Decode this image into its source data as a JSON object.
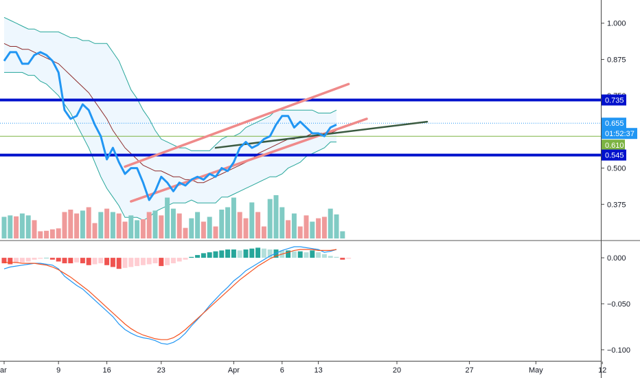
{
  "chart_data": [
    {
      "type": "line",
      "panel": "price",
      "title": "",
      "x_tick_labels": [
        "ar",
        "9",
        "16",
        "23",
        "Apr",
        "6",
        "13",
        "20",
        "27",
        "May",
        "12"
      ],
      "y_ticks": [
        1.0,
        0.875,
        0.75,
        0.5,
        0.375
      ],
      "y_tick_labels": [
        "1.000",
        "0.875",
        "0.750",
        "0.500",
        "0.375"
      ],
      "ylim": [
        0.25,
        1.08
      ],
      "grid": false,
      "price_series": {
        "name": "",
        "color": "#2196f3",
        "values": [
          0.87,
          0.9,
          0.9,
          0.86,
          0.86,
          0.89,
          0.9,
          0.89,
          0.87,
          0.83,
          0.7,
          0.67,
          0.68,
          0.72,
          0.7,
          0.65,
          0.61,
          0.53,
          0.57,
          0.52,
          0.48,
          0.5,
          0.5,
          0.45,
          0.39,
          0.42,
          0.47,
          0.45,
          0.42,
          0.45,
          0.44,
          0.46,
          0.47,
          0.46,
          0.48,
          0.47,
          0.5,
          0.49,
          0.52,
          0.57,
          0.59,
          0.57,
          0.58,
          0.6,
          0.61,
          0.65,
          0.68,
          0.68,
          0.64,
          0.66,
          0.64,
          0.62,
          0.62,
          0.61,
          0.64,
          0.65
        ]
      },
      "bollinger": {
        "color": "#26a69a",
        "fill": "#e3f2fd",
        "upper": [
          1.02,
          1.01,
          1.0,
          0.99,
          0.98,
          0.98,
          0.97,
          0.97,
          0.97,
          0.97,
          0.96,
          0.95,
          0.95,
          0.94,
          0.94,
          0.93,
          0.93,
          0.93,
          0.9,
          0.87,
          0.82,
          0.77,
          0.74,
          0.7,
          0.67,
          0.63,
          0.6,
          0.59,
          0.58,
          0.57,
          0.57,
          0.56,
          0.56,
          0.56,
          0.56,
          0.58,
          0.6,
          0.61,
          0.61,
          0.62,
          0.64,
          0.65,
          0.66,
          0.67,
          0.68,
          0.7,
          0.7,
          0.7,
          0.7,
          0.7,
          0.7,
          0.7,
          0.69,
          0.69,
          0.69,
          0.7
        ],
        "middle": [
          0.93,
          0.92,
          0.92,
          0.91,
          0.91,
          0.9,
          0.89,
          0.88,
          0.87,
          0.86,
          0.84,
          0.82,
          0.8,
          0.78,
          0.76,
          0.73,
          0.7,
          0.67,
          0.63,
          0.6,
          0.57,
          0.55,
          0.53,
          0.51,
          0.5,
          0.49,
          0.49,
          0.48,
          0.47,
          0.47,
          0.46,
          0.46,
          0.45,
          0.45,
          0.46,
          0.47,
          0.48,
          0.49,
          0.5,
          0.51,
          0.52,
          0.53,
          0.55,
          0.56,
          0.57,
          0.58,
          0.59,
          0.6,
          0.6,
          0.61,
          0.61,
          0.62,
          0.62,
          0.62,
          0.62,
          0.63
        ],
        "lower": [
          0.83,
          0.83,
          0.83,
          0.83,
          0.82,
          0.82,
          0.8,
          0.79,
          0.77,
          0.75,
          0.72,
          0.69,
          0.65,
          0.61,
          0.57,
          0.52,
          0.47,
          0.43,
          0.4,
          0.37,
          0.33,
          0.33,
          0.33,
          0.32,
          0.33,
          0.35,
          0.36,
          0.37,
          0.38,
          0.38,
          0.38,
          0.39,
          0.38,
          0.38,
          0.38,
          0.38,
          0.4,
          0.4,
          0.41,
          0.42,
          0.43,
          0.44,
          0.45,
          0.46,
          0.47,
          0.47,
          0.48,
          0.5,
          0.51,
          0.52,
          0.54,
          0.55,
          0.56,
          0.57,
          0.59,
          0.59
        ]
      },
      "horizontal_levels": [
        {
          "label": "0.735",
          "value": 0.735,
          "color": "#0011cc",
          "style": "thick"
        },
        {
          "label": "0.655",
          "value": 0.655,
          "color": "#2196f3",
          "style": "dotted"
        },
        {
          "label": "0.610",
          "value": 0.61,
          "color": "#7cb342",
          "style": "thin"
        },
        {
          "label": "0.545",
          "value": 0.545,
          "color": "#0011cc",
          "style": "thick"
        }
      ],
      "countdown": {
        "label": "01:52:37",
        "color": "#2196f3"
      },
      "trendlines": [
        {
          "color": "#ef8a8a",
          "points": [
            [
              20,
              0.505
            ],
            [
              57,
              0.79
            ]
          ]
        },
        {
          "color": "#ef8a8a",
          "points": [
            [
              21,
              0.385
            ],
            [
              60,
              0.67
            ]
          ]
        },
        {
          "color": "#3a5a40",
          "points": [
            [
              35,
              0.57
            ],
            [
              70,
              0.66
            ]
          ]
        }
      ]
    },
    {
      "type": "bar",
      "panel": "volume",
      "colors": {
        "up": "#80cbc4",
        "down": "#ef9a9a"
      },
      "values": [
        0.45,
        0.48,
        0.46,
        0.52,
        0.48,
        0.38,
        0.15,
        0.16,
        0.19,
        0.21,
        0.55,
        0.6,
        0.52,
        0.58,
        0.65,
        0.32,
        0.55,
        0.62,
        0.55,
        0.52,
        0.35,
        0.48,
        0.38,
        0.4,
        0.55,
        0.58,
        0.48,
        0.85,
        0.62,
        0.52,
        0.22,
        0.42,
        0.55,
        0.35,
        0.45,
        0.25,
        0.6,
        0.65,
        0.85,
        0.55,
        0.42,
        0.75,
        0.55,
        0.25,
        0.82,
        0.9,
        0.65,
        0.38,
        0.52,
        0.25,
        0.48,
        0.35,
        0.42,
        0.45,
        0.62,
        0.5,
        0.15
      ],
      "directions": [
        "u",
        "u",
        "d",
        "u",
        "u",
        "d",
        "d",
        "d",
        "d",
        "d",
        "d",
        "d",
        "d",
        "u",
        "d",
        "d",
        "u",
        "d",
        "u",
        "d",
        "d",
        "u",
        "u",
        "d",
        "d",
        "u",
        "d",
        "u",
        "u",
        "d",
        "d",
        "u",
        "u",
        "d",
        "u",
        "d",
        "u",
        "u",
        "u",
        "d",
        "d",
        "u",
        "d",
        "d",
        "u",
        "u",
        "u",
        "d",
        "u",
        "d",
        "d",
        "u",
        "d",
        "d",
        "u",
        "u",
        "u"
      ]
    },
    {
      "type": "bar",
      "panel": "macd",
      "title": "",
      "y_ticks": [
        0.0,
        -0.05,
        -0.1
      ],
      "y_tick_labels": [
        "0.000",
        "−0.050",
        "−0.100"
      ],
      "ylim": [
        -0.112,
        0.018
      ],
      "histogram": [
        -0.006,
        -0.007,
        -0.006,
        -0.005,
        -0.004,
        -0.002,
        -0.001,
        0.0,
        -0.002,
        -0.004,
        -0.006,
        -0.006,
        -0.005,
        -0.006,
        -0.008,
        -0.007,
        -0.006,
        -0.008,
        -0.01,
        -0.012,
        -0.011,
        -0.01,
        -0.009,
        -0.008,
        -0.007,
        -0.006,
        -0.009,
        -0.008,
        -0.006,
        -0.004,
        -0.002,
        0.001,
        0.003,
        0.005,
        0.006,
        0.007,
        0.008,
        0.009,
        0.009,
        0.008,
        0.009,
        0.01,
        0.011,
        0.01,
        0.009,
        0.009,
        0.008,
        0.008,
        0.007,
        0.007,
        0.006,
        0.008,
        0.006,
        0.004,
        0.002,
        0.001,
        -0.002,
        -0.001
      ],
      "histogram_colors": {
        "rising_pos": "#26a69a",
        "falling_pos": "#b2dfdb",
        "falling_neg": "#ef5350",
        "rising_neg": "#ffcdd2"
      },
      "macd": {
        "color": "#2196f3",
        "values": [
          -0.012,
          -0.01,
          -0.009,
          -0.008,
          -0.007,
          -0.006,
          -0.006,
          -0.007,
          -0.008,
          -0.012,
          -0.02,
          -0.025,
          -0.03,
          -0.034,
          -0.04,
          -0.046,
          -0.052,
          -0.058,
          -0.064,
          -0.072,
          -0.078,
          -0.082,
          -0.085,
          -0.087,
          -0.088,
          -0.09,
          -0.093,
          -0.094,
          -0.092,
          -0.088,
          -0.082,
          -0.074,
          -0.067,
          -0.06,
          -0.052,
          -0.045,
          -0.038,
          -0.032,
          -0.025,
          -0.02,
          -0.014,
          -0.01,
          -0.006,
          -0.002,
          0.002,
          0.005,
          0.008,
          0.01,
          0.012,
          0.012,
          0.011,
          0.01,
          0.009,
          0.006,
          0.007,
          0.009
        ]
      },
      "signal": {
        "color": "#f4511e",
        "values": [
          -0.005,
          -0.005,
          -0.005,
          -0.006,
          -0.006,
          -0.006,
          -0.007,
          -0.008,
          -0.01,
          -0.013,
          -0.017,
          -0.021,
          -0.026,
          -0.031,
          -0.036,
          -0.042,
          -0.048,
          -0.054,
          -0.06,
          -0.066,
          -0.072,
          -0.077,
          -0.081,
          -0.084,
          -0.086,
          -0.088,
          -0.089,
          -0.089,
          -0.087,
          -0.083,
          -0.078,
          -0.072,
          -0.066,
          -0.06,
          -0.054,
          -0.048,
          -0.042,
          -0.036,
          -0.03,
          -0.024,
          -0.019,
          -0.014,
          -0.009,
          -0.005,
          -0.001,
          0.002,
          0.004,
          0.006,
          0.008,
          0.009,
          0.009,
          0.009,
          0.008,
          0.008,
          0.008,
          0.009
        ]
      }
    }
  ]
}
